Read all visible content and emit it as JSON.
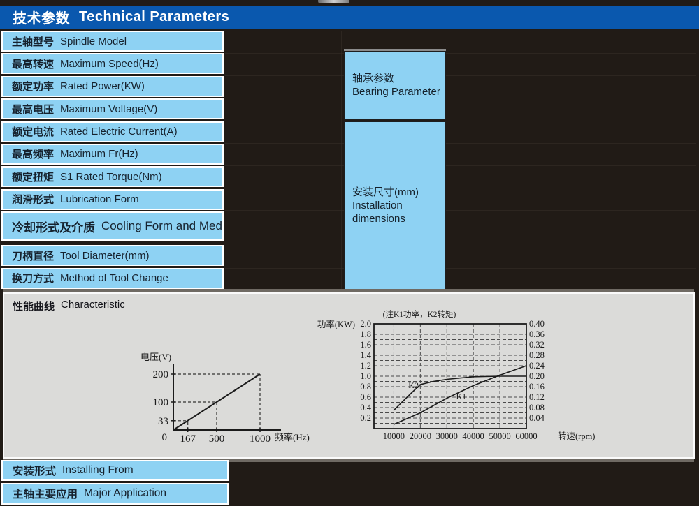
{
  "header": {
    "title_zh": "技术参数",
    "title_en": "Technical  Parameters"
  },
  "parameter_table": {
    "rows": [
      {
        "zh": "主轴型号",
        "en": "Spindle Model"
      },
      {
        "zh": "最高转速",
        "en": "Maximum Speed(Hz)"
      },
      {
        "zh": "额定功率",
        "en": "Rated Power(KW)"
      },
      {
        "zh": "最高电压",
        "en": "Maximum Voltage(V)"
      },
      {
        "zh": "额定电流",
        "en": "Rated Electric Current(A)"
      },
      {
        "zh": "最高频率",
        "en": "Maximum Fr(Hz)"
      },
      {
        "zh": "额定扭矩",
        "en": "S1 Rated Torque(Nm)"
      },
      {
        "zh": "润滑形式",
        "en": "Lubrication Form"
      },
      {
        "zh": "冷却形式及介质",
        "en": "Cooling Form and Medium"
      },
      {
        "zh": "刀柄直径",
        "en": "Tool Diameter(mm)"
      },
      {
        "zh": "换刀方式",
        "en": "Method of Tool Change"
      }
    ]
  },
  "side_boxes": {
    "bearing": {
      "zh": "轴承参数",
      "en": "Bearing Parameter"
    },
    "installation": {
      "zh": "安装尺寸(mm)",
      "en_line1": "Installation",
      "en_line2": "dimensions"
    }
  },
  "characteristic": {
    "label_zh": "性能曲线",
    "label_en": "Characteristic"
  },
  "bottom_table": {
    "rows": [
      {
        "zh": "安装形式",
        "en": "Installing From"
      },
      {
        "zh": "主轴主要应用",
        "en": "Major Application"
      }
    ]
  },
  "colors": {
    "header_blue": "#0a58ae",
    "cell_blue": "#8ed2f3",
    "panel_gray": "#dbdbd9",
    "background": "#211b16",
    "line_black": "#1b1b1b"
  },
  "chart_data": [
    {
      "id": "voltage-frequency",
      "type": "line",
      "title": "",
      "ylabel": "电压(V)",
      "xlabel": "频率(Hz)",
      "origin_label": "0",
      "x_ticks": [
        167,
        500,
        1000
      ],
      "y_ticks": [
        200,
        100,
        33
      ],
      "xlim": [
        0,
        1150
      ],
      "ylim": [
        0,
        235
      ],
      "grid": "dashed-guides-only",
      "series": [
        {
          "name": "voltage-line",
          "x": [
            0,
            1000
          ],
          "y": [
            0,
            200
          ]
        }
      ],
      "guides": [
        [
          167,
          33
        ],
        [
          500,
          100
        ],
        [
          1000,
          200
        ]
      ]
    },
    {
      "id": "power-torque",
      "type": "line",
      "note": "(注K1功率，K2转矩)",
      "ylabel_left": "功率(KW)",
      "xlabel": "转速(rpm)",
      "left_ticks": [
        "2.0",
        "1.8",
        "1.6",
        "1.4",
        "1.2",
        "1.0",
        "0.8",
        "0.6",
        "0.4",
        "0.2"
      ],
      "right_ticks": [
        "0.40",
        "0.36",
        "0.32",
        "0.28",
        "0.24",
        "0.20",
        "0.16",
        "0.12",
        "0.08",
        "0.04"
      ],
      "x_ticks": [
        10000,
        20000,
        30000,
        40000,
        50000,
        60000
      ],
      "xlim": [
        2500,
        60000
      ],
      "ylim_left": [
        0,
        2.0
      ],
      "ylim_right": [
        0,
        0.4
      ],
      "grid": "dashed-horizontal-0.1-and-vertical-majors",
      "legend_position": "inline-labels",
      "series": [
        {
          "name": "K1",
          "x": [
            10000,
            20000,
            30000,
            40000,
            50000,
            60000
          ],
          "y": [
            0.08,
            0.3,
            0.58,
            0.82,
            1.02,
            1.2
          ],
          "label_at": [
            33500,
            0.62
          ]
        },
        {
          "name": "K2",
          "x": [
            10000,
            15000,
            20000,
            25000,
            30000,
            40000,
            50000,
            60000
          ],
          "y": [
            0.35,
            0.6,
            0.84,
            0.9,
            0.94,
            0.99,
            1.0,
            1.0
          ],
          "label_at": [
            15500,
            0.83
          ]
        }
      ]
    }
  ]
}
